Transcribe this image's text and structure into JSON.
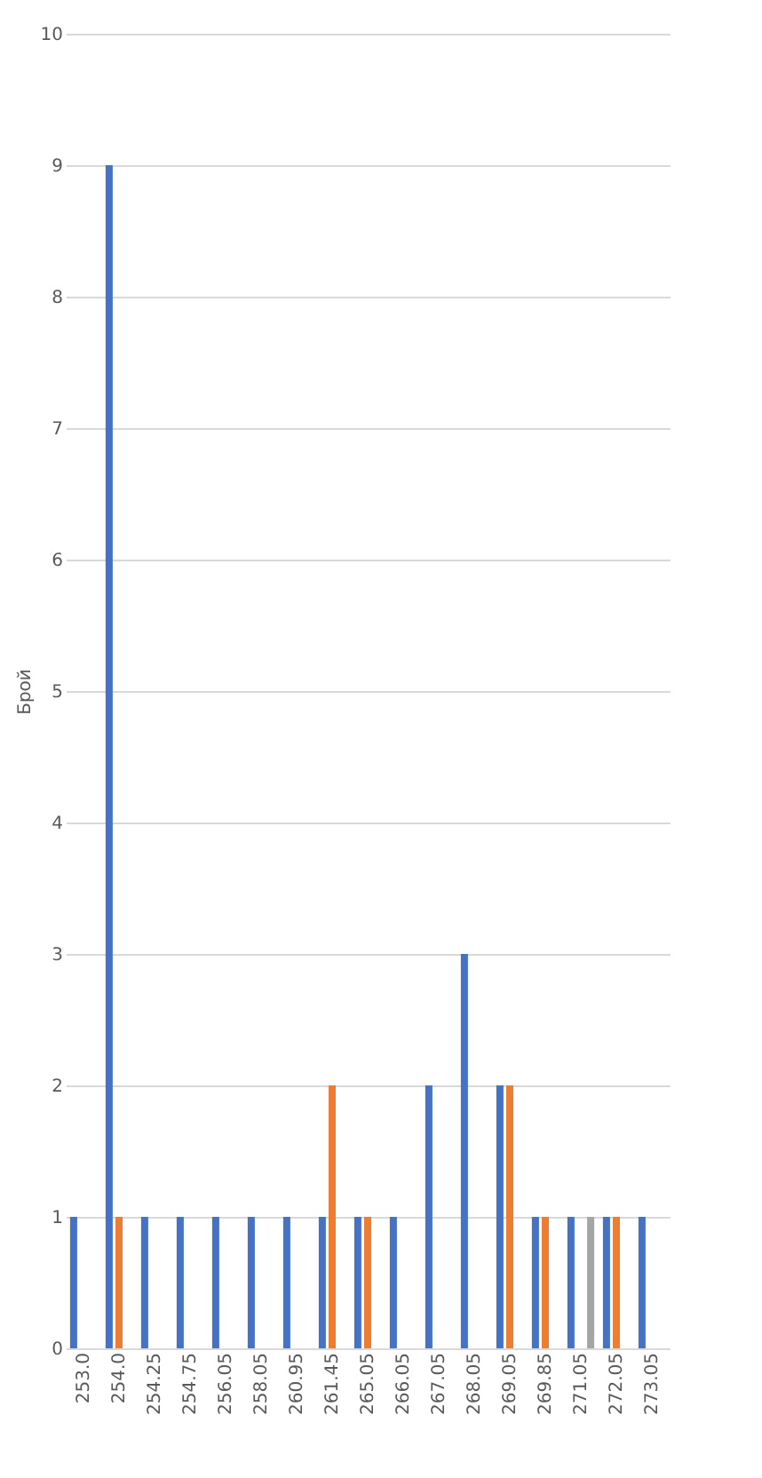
{
  "chart_data": {
    "type": "bar",
    "ylabel": "Брой",
    "categories": [
      "253.0",
      "254.0",
      "254.25",
      "254.75",
      "256.05",
      "258.05",
      "260.95",
      "261.45",
      "265.05",
      "266.05",
      "267.05",
      "268.05",
      "269.05",
      "269.85",
      "271.05",
      "272.05",
      "273.05"
    ],
    "series": [
      {
        "color": "#4472c4",
        "values": [
          1,
          9,
          1,
          1,
          1,
          1,
          1,
          1,
          1,
          1,
          2,
          3,
          2,
          1,
          1,
          1,
          1
        ]
      },
      {
        "color": "#ed7d31",
        "values": [
          null,
          1,
          null,
          null,
          null,
          null,
          null,
          2,
          1,
          null,
          null,
          null,
          2,
          1,
          null,
          1,
          null
        ]
      },
      {
        "color": "#a5a5a5",
        "values": [
          null,
          null,
          null,
          null,
          null,
          null,
          null,
          null,
          null,
          null,
          null,
          null,
          null,
          null,
          1,
          null,
          null
        ]
      }
    ],
    "ylim": [
      0,
      10
    ],
    "yticks": [
      0,
      1,
      2,
      3,
      4,
      5,
      6,
      7,
      8,
      9,
      10
    ],
    "grid": "y",
    "legend": false
  }
}
